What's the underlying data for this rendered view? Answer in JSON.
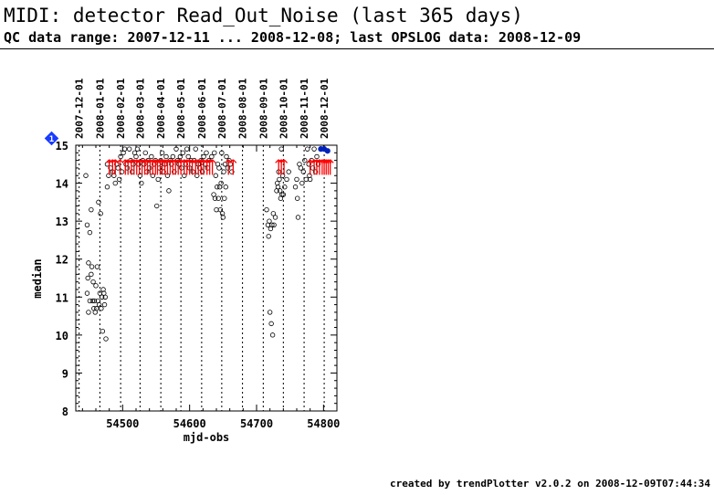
{
  "header": {
    "title": "MIDI: detector Read_Out_Noise (last 365 days)",
    "subtitle": "QC data range: 2007-12-11 ... 2008-12-08; last OPSLOG data: 2008-12-09"
  },
  "footer": "created by trendPlotter v2.0.2 on 2008-12-09T07:44:34",
  "chart_data": {
    "type": "scatter",
    "title": "",
    "xlabel": "mjd-obs",
    "ylabel": "median",
    "xlim": [
      54430,
      54820
    ],
    "ylim": [
      8,
      15
    ],
    "x_ticks": [
      54500,
      54600,
      54700,
      54800
    ],
    "y_ticks": [
      8,
      9,
      10,
      11,
      12,
      13,
      14,
      15
    ],
    "date_markers": [
      {
        "label": "2007-12-01",
        "mjd": 54435
      },
      {
        "label": "2008-01-01",
        "mjd": 54466
      },
      {
        "label": "2008-02-01",
        "mjd": 54497
      },
      {
        "label": "2008-03-01",
        "mjd": 54526
      },
      {
        "label": "2008-04-01",
        "mjd": 54557
      },
      {
        "label": "2008-05-01",
        "mjd": 54587
      },
      {
        "label": "2008-06-01",
        "mjd": 54618
      },
      {
        "label": "2008-07-01",
        "mjd": 54648
      },
      {
        "label": "2008-08-01",
        "mjd": 54679
      },
      {
        "label": "2008-09-01",
        "mjd": 54710
      },
      {
        "label": "2008-10-01",
        "mjd": 54740
      },
      {
        "label": "2008-11-01",
        "mjd": 54771
      },
      {
        "label": "2008-12-01",
        "mjd": 54801
      }
    ],
    "out_of_range_marker": {
      "label": "1",
      "color": "#1a3cff"
    },
    "colors": {
      "points": "#000000",
      "upper_arrows": "#ff0000",
      "latest": "#0022bb",
      "marker": "#1a3cff"
    },
    "points": [
      [
        54445,
        14.2
      ],
      [
        54447,
        12.9
      ],
      [
        54447,
        11.1
      ],
      [
        54448,
        11.5
      ],
      [
        54449,
        11.9
      ],
      [
        54449,
        10.6
      ],
      [
        54451,
        12.7
      ],
      [
        54451,
        10.9
      ],
      [
        54453,
        13.3
      ],
      [
        54453,
        11.6
      ],
      [
        54454,
        11.8
      ],
      [
        54455,
        10.9
      ],
      [
        54456,
        11.4
      ],
      [
        54457,
        10.7
      ],
      [
        54458,
        10.9
      ],
      [
        54459,
        10.6
      ],
      [
        54460,
        11.3
      ],
      [
        54461,
        10.7
      ],
      [
        54462,
        11.8
      ],
      [
        54463,
        10.9
      ],
      [
        54464,
        13.5
      ],
      [
        54465,
        10.8
      ],
      [
        54466,
        11.1
      ],
      [
        54467,
        13.2
      ],
      [
        54468,
        10.7
      ],
      [
        54469,
        11.0
      ],
      [
        54470,
        10.1
      ],
      [
        54471,
        11.2
      ],
      [
        54472,
        11.1
      ],
      [
        54473,
        10.8
      ],
      [
        54474,
        11.0
      ],
      [
        54475,
        9.9
      ],
      [
        54477,
        13.9
      ],
      [
        54477,
        14.5
      ],
      [
        54479,
        14.2
      ],
      [
        54482,
        14.4
      ],
      [
        54485,
        14.3
      ],
      [
        54487,
        14.2
      ],
      [
        54489,
        14.0
      ],
      [
        54491,
        14.5
      ],
      [
        54493,
        14.4
      ],
      [
        54495,
        14.1
      ],
      [
        54497,
        14.7
      ],
      [
        54499,
        14.3
      ],
      [
        54501,
        14.8
      ],
      [
        54503,
        14.9
      ],
      [
        54505,
        14.5
      ],
      [
        54507,
        14.4
      ],
      [
        54510,
        14.9
      ],
      [
        54512,
        14.6
      ],
      [
        54514,
        14.3
      ],
      [
        54516,
        14.5
      ],
      [
        54518,
        14.8
      ],
      [
        54520,
        14.7
      ],
      [
        54522,
        14.9
      ],
      [
        54524,
        14.5
      ],
      [
        54526,
        14.2
      ],
      [
        54528,
        14.0
      ],
      [
        54530,
        14.6
      ],
      [
        54532,
        14.5
      ],
      [
        54534,
        14.8
      ],
      [
        54536,
        14.3
      ],
      [
        54538,
        14.6
      ],
      [
        54540,
        14.4
      ],
      [
        54543,
        14.7
      ],
      [
        54545,
        14.2
      ],
      [
        54547,
        14.5
      ],
      [
        54549,
        14.6
      ],
      [
        54551,
        13.4
      ],
      [
        54553,
        14.1
      ],
      [
        54555,
        14.4
      ],
      [
        54557,
        14.6
      ],
      [
        54559,
        14.8
      ],
      [
        54561,
        14.3
      ],
      [
        54563,
        14.5
      ],
      [
        54565,
        14.7
      ],
      [
        54567,
        14.2
      ],
      [
        54569,
        13.8
      ],
      [
        54571,
        14.6
      ],
      [
        54573,
        14.5
      ],
      [
        54575,
        14.7
      ],
      [
        54577,
        14.3
      ],
      [
        54580,
        14.9
      ],
      [
        54582,
        14.6
      ],
      [
        54584,
        14.5
      ],
      [
        54586,
        14.7
      ],
      [
        54588,
        14.4
      ],
      [
        54590,
        14.8
      ],
      [
        54592,
        14.2
      ],
      [
        54594,
        14.5
      ],
      [
        54596,
        14.9
      ],
      [
        54598,
        14.7
      ],
      [
        54600,
        14.4
      ],
      [
        54602,
        14.6
      ],
      [
        54605,
        14.3
      ],
      [
        54607,
        14.6
      ],
      [
        54609,
        14.9
      ],
      [
        54611,
        14.2
      ],
      [
        54613,
        14.5
      ],
      [
        54615,
        14.4
      ],
      [
        54617,
        14.6
      ],
      [
        54619,
        14.3
      ],
      [
        54621,
        14.7
      ],
      [
        54623,
        14.5
      ],
      [
        54625,
        14.8
      ],
      [
        54627,
        14.4
      ],
      [
        54629,
        14.6
      ],
      [
        54633,
        14.7
      ],
      [
        54636,
        13.7
      ],
      [
        54637,
        14.8
      ],
      [
        54638,
        13.6
      ],
      [
        54639,
        14.2
      ],
      [
        54640,
        13.3
      ],
      [
        54641,
        13.9
      ],
      [
        54642,
        14.5
      ],
      [
        54643,
        13.6
      ],
      [
        54644,
        14.4
      ],
      [
        54645,
        13.9
      ],
      [
        54646,
        13.3
      ],
      [
        54647,
        14.0
      ],
      [
        54648,
        14.8
      ],
      [
        54649,
        13.2
      ],
      [
        54650,
        13.1
      ],
      [
        54651,
        14.3
      ],
      [
        54652,
        13.6
      ],
      [
        54653,
        14.5
      ],
      [
        54654,
        13.9
      ],
      [
        54655,
        14.7
      ],
      [
        54657,
        14.4
      ],
      [
        54659,
        14.6
      ],
      [
        54661,
        14.5
      ],
      [
        54663,
        14.3
      ],
      [
        54715,
        13.3
      ],
      [
        54717,
        12.9
      ],
      [
        54718,
        12.6
      ],
      [
        54719,
        13.0
      ],
      [
        54720,
        10.6
      ],
      [
        54721,
        12.8
      ],
      [
        54722,
        10.3
      ],
      [
        54723,
        12.9
      ],
      [
        54724,
        10.0
      ],
      [
        54725,
        13.2
      ],
      [
        54726,
        12.9
      ],
      [
        54728,
        13.1
      ],
      [
        54730,
        13.8
      ],
      [
        54731,
        14.0
      ],
      [
        54732,
        13.9
      ],
      [
        54733,
        14.3
      ],
      [
        54734,
        14.1
      ],
      [
        54735,
        13.8
      ],
      [
        54736,
        13.6
      ],
      [
        54737,
        14.9
      ],
      [
        54738,
        13.7
      ],
      [
        54739,
        14.2
      ],
      [
        54740,
        13.7
      ],
      [
        54742,
        13.9
      ],
      [
        54745,
        14.1
      ],
      [
        54748,
        14.3
      ],
      [
        54758,
        13.9
      ],
      [
        54760,
        14.1
      ],
      [
        54761,
        13.6
      ],
      [
        54762,
        13.1
      ],
      [
        54764,
        14.5
      ],
      [
        54766,
        14.4
      ],
      [
        54768,
        14.0
      ],
      [
        54770,
        14.3
      ],
      [
        54772,
        14.6
      ],
      [
        54774,
        14.1
      ],
      [
        54776,
        14.9
      ],
      [
        54778,
        14.5
      ],
      [
        54779,
        14.2
      ],
      [
        54780,
        14.1
      ],
      [
        54782,
        14.6
      ],
      [
        54784,
        14.4
      ],
      [
        54786,
        14.9
      ],
      [
        54788,
        14.3
      ],
      [
        54790,
        14.7
      ],
      [
        54792,
        14.5
      ]
    ],
    "upper_limit_arrows": [
      54480,
      54485,
      54489,
      54496,
      54504,
      54508,
      54513,
      54517,
      54521,
      54525,
      54529,
      54533,
      54537,
      54541,
      54545,
      54549,
      54552,
      54556,
      54559,
      54563,
      54567,
      54571,
      54575,
      54579,
      54583,
      54587,
      54592,
      54596,
      54600,
      54604,
      54609,
      54613,
      54617,
      54621,
      54626,
      54630,
      54634,
      54658,
      54665,
      54733,
      54737,
      54741,
      54780,
      54786,
      54790,
      54794,
      54798,
      54801,
      54804,
      54807,
      54810
    ],
    "latest_points": [
      [
        54796,
        14.9
      ],
      [
        54801,
        14.9
      ],
      [
        54806,
        14.85
      ]
    ]
  }
}
